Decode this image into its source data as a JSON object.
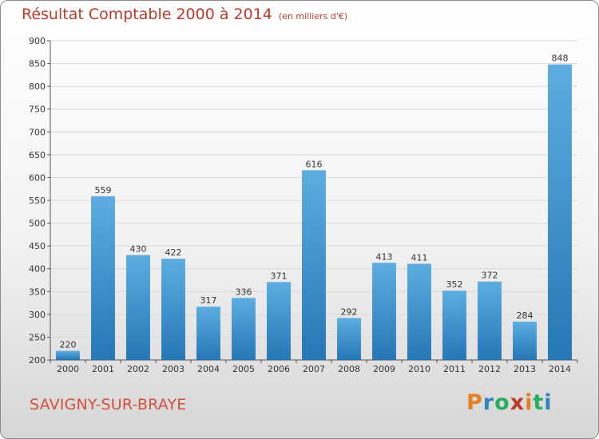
{
  "header": {
    "title": "Résultat Comptable 2000 à 2014",
    "subtitle": "(en milliers d'€)"
  },
  "footer": {
    "place": "SAVIGNY-SUR-BRAYE",
    "logo_letters": [
      "P",
      "r",
      "o",
      "x",
      "i",
      "t",
      "i"
    ],
    "logo_colors": [
      "#e67e22",
      "#2e86c1",
      "#27ae60",
      "#c0392b",
      "#e67e22",
      "#27ae60",
      "#2e86c1"
    ]
  },
  "colors": {
    "title": "#c0392b",
    "bar_light": "#5dade2",
    "bar_dark": "#2577b5",
    "grid": "#d8d8d8",
    "axis": "#555555"
  },
  "chart_data": {
    "type": "bar",
    "title": "Résultat Comptable 2000 à 2014",
    "subtitle": "(en milliers d'€)",
    "xlabel": "",
    "ylabel": "",
    "categories": [
      "2000",
      "2001",
      "2002",
      "2003",
      "2004",
      "2005",
      "2006",
      "2007",
      "2008",
      "2009",
      "2010",
      "2011",
      "2012",
      "2013",
      "2014"
    ],
    "values": [
      220,
      559,
      430,
      422,
      317,
      336,
      371,
      616,
      292,
      413,
      411,
      352,
      372,
      284,
      848
    ],
    "ylim": [
      200,
      900
    ],
    "yticks": [
      200,
      250,
      300,
      350,
      400,
      450,
      500,
      550,
      600,
      650,
      700,
      750,
      800,
      850,
      900
    ],
    "grid": true,
    "data_labels": true
  }
}
